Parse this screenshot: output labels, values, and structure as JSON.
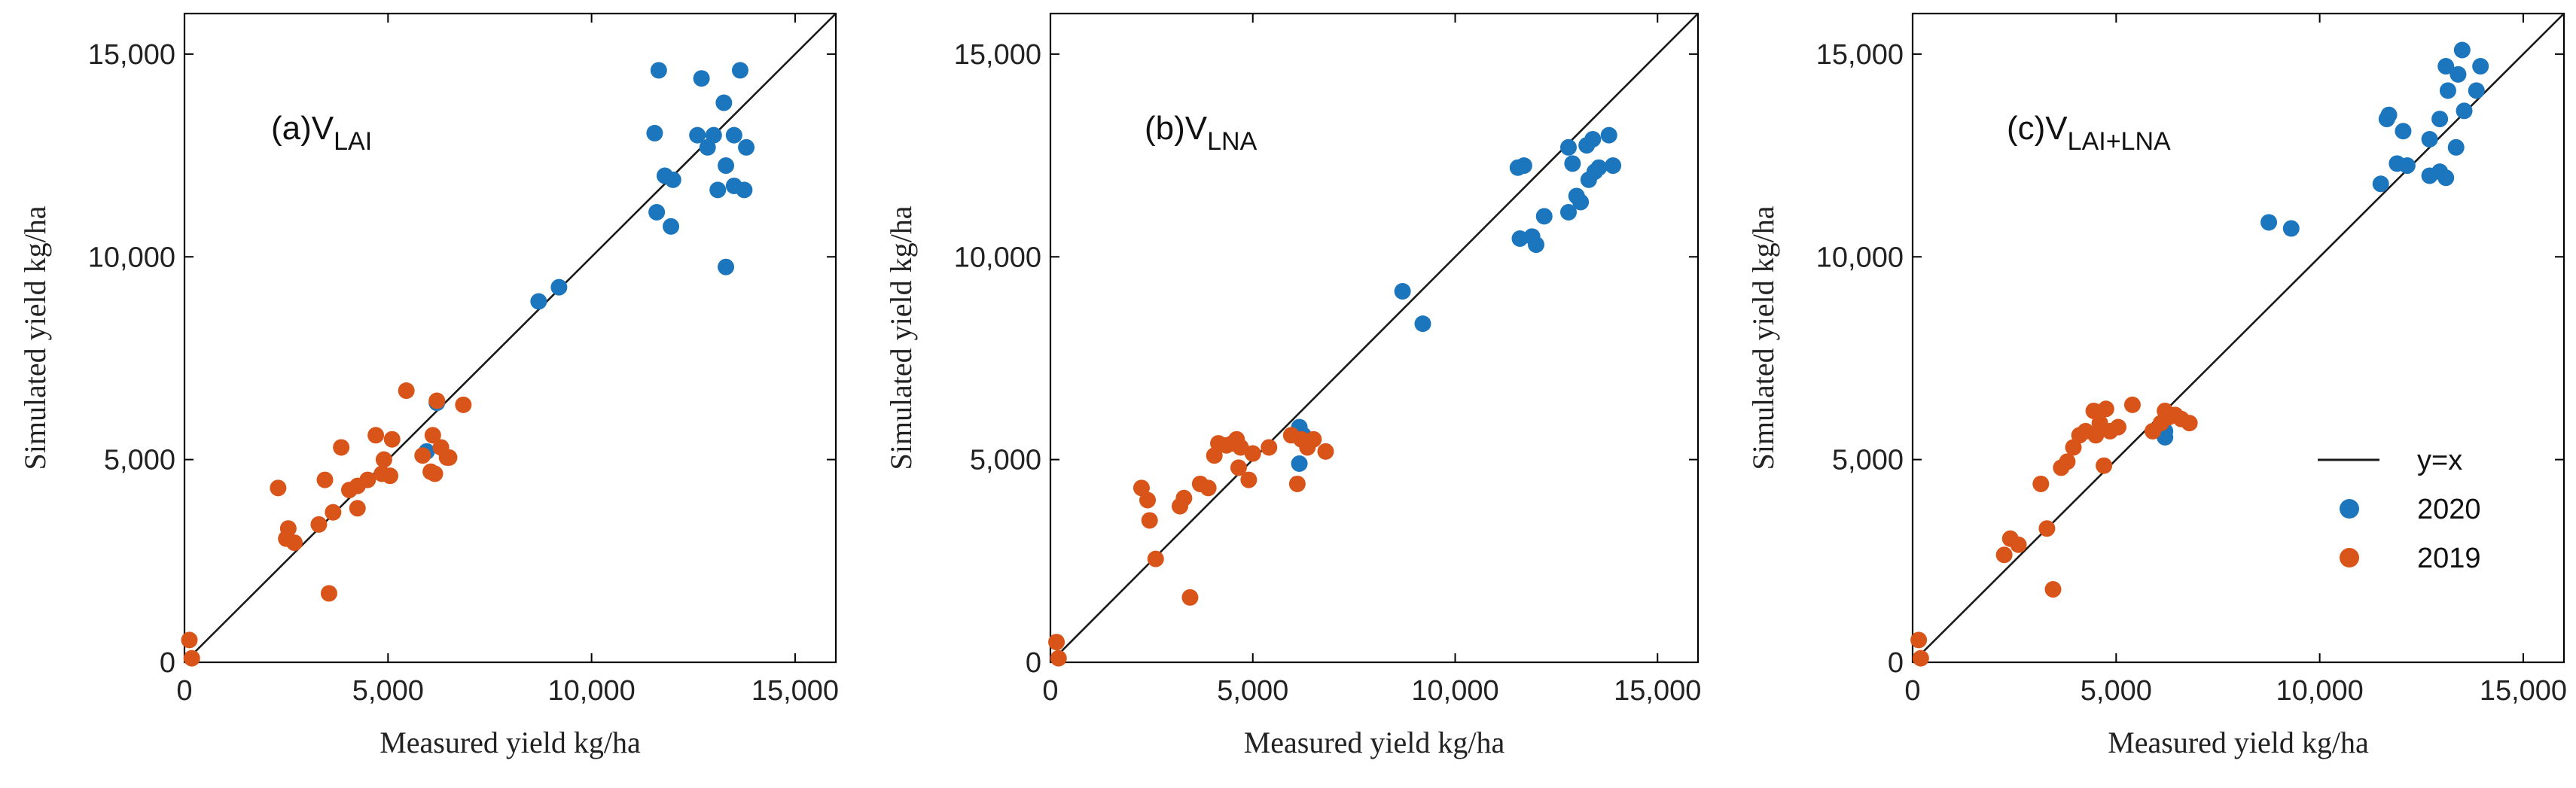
{
  "colors": {
    "s2020": "#1b76bd",
    "s2019": "#d95419",
    "line": "#1a1a1a"
  },
  "legend": {
    "line": "y=x",
    "s2020": "2020",
    "s2019": "2019"
  },
  "chart_data": [
    {
      "type": "scatter",
      "panel_label": {
        "prefix": "(a)V",
        "sub": "LAI"
      },
      "xlabel": "Measured yield kg/ha",
      "ylabel": "Simulated yield kg/ha",
      "xlim": [
        0,
        16000
      ],
      "ylim": [
        0,
        16000
      ],
      "xticks": [
        0,
        5000,
        10000,
        15000
      ],
      "yticks": [
        0,
        5000,
        10000,
        15000
      ],
      "tick_labels": [
        "0",
        "5,000",
        "10,000",
        "15,000"
      ],
      "reference_line": "y=x",
      "series": [
        {
          "name": "2020",
          "points": [
            [
              11550,
              13050
            ],
            [
              11650,
              14600
            ],
            [
              12700,
              14400
            ],
            [
              13650,
              14600
            ],
            [
              12600,
              13000
            ],
            [
              13000,
              13000
            ],
            [
              13250,
              13800
            ],
            [
              13500,
              13000
            ],
            [
              12850,
              12700
            ],
            [
              13800,
              12700
            ],
            [
              11800,
              12000
            ],
            [
              12000,
              11900
            ],
            [
              11600,
              11100
            ],
            [
              11950,
              10750
            ],
            [
              13100,
              11650
            ],
            [
              13500,
              11750
            ],
            [
              13750,
              11650
            ],
            [
              13300,
              9750
            ],
            [
              13300,
              12250
            ],
            [
              8700,
              8900
            ],
            [
              9200,
              9250
            ],
            [
              6200,
              6400
            ],
            [
              5950,
              5200
            ]
          ]
        },
        {
          "name": "2019",
          "points": [
            [
              2300,
              4300
            ],
            [
              2550,
              3300
            ],
            [
              2500,
              3050
            ],
            [
              2700,
              2950
            ],
            [
              3300,
              3400
            ],
            [
              3450,
              4500
            ],
            [
              3650,
              3700
            ],
            [
              3850,
              5300
            ],
            [
              4050,
              4250
            ],
            [
              4250,
              4350
            ],
            [
              4250,
              3800
            ],
            [
              4500,
              4500
            ],
            [
              4700,
              5600
            ],
            [
              4850,
              4650
            ],
            [
              5050,
              4600
            ],
            [
              5100,
              5500
            ],
            [
              4900,
              5000
            ],
            [
              5450,
              6700
            ],
            [
              5850,
              5100
            ],
            [
              6050,
              4700
            ],
            [
              6150,
              4650
            ],
            [
              6100,
              5600
            ],
            [
              6300,
              5300
            ],
            [
              6450,
              5050
            ],
            [
              6500,
              5050
            ],
            [
              6200,
              6450
            ],
            [
              6850,
              6350
            ],
            [
              3550,
              1700
            ],
            [
              120,
              550
            ],
            [
              180,
              100
            ]
          ]
        }
      ]
    },
    {
      "type": "scatter",
      "panel_label": {
        "prefix": "(b)V",
        "sub": "LNA"
      },
      "xlabel": "Measured yield kg/ha",
      "ylabel": "Simulated yield kg/ha",
      "xlim": [
        0,
        16000
      ],
      "ylim": [
        0,
        16000
      ],
      "xticks": [
        0,
        5000,
        10000,
        15000
      ],
      "yticks": [
        0,
        5000,
        10000,
        15000
      ],
      "tick_labels": [
        "0",
        "5,000",
        "10,000",
        "15,000"
      ],
      "reference_line": "y=x",
      "series": [
        {
          "name": "2020",
          "points": [
            [
              11550,
              12200
            ],
            [
              11700,
              12250
            ],
            [
              12800,
              12700
            ],
            [
              13250,
              12750
            ],
            [
              13400,
              12900
            ],
            [
              13800,
              13000
            ],
            [
              12900,
              12300
            ],
            [
              13450,
              12100
            ],
            [
              13550,
              12200
            ],
            [
              13900,
              12250
            ],
            [
              13300,
              11900
            ],
            [
              12200,
              11000
            ],
            [
              12800,
              11100
            ],
            [
              13000,
              11500
            ],
            [
              13100,
              11350
            ],
            [
              11600,
              10450
            ],
            [
              11900,
              10500
            ],
            [
              12000,
              10300
            ],
            [
              8700,
              9150
            ],
            [
              9200,
              8350
            ],
            [
              6150,
              5800
            ],
            [
              6250,
              5600
            ],
            [
              6150,
              4900
            ]
          ]
        },
        {
          "name": "2019",
          "points": [
            [
              2250,
              4300
            ],
            [
              2400,
              4000
            ],
            [
              2450,
              3500
            ],
            [
              2600,
              2550
            ],
            [
              3200,
              3850
            ],
            [
              3300,
              4050
            ],
            [
              3700,
              4400
            ],
            [
              3900,
              4300
            ],
            [
              4050,
              5100
            ],
            [
              4150,
              5400
            ],
            [
              4350,
              5350
            ],
            [
              4500,
              5400
            ],
            [
              4600,
              5500
            ],
            [
              4700,
              5300
            ],
            [
              4650,
              4800
            ],
            [
              4900,
              4500
            ],
            [
              5000,
              5150
            ],
            [
              5400,
              5300
            ],
            [
              5950,
              5600
            ],
            [
              6100,
              4400
            ],
            [
              6200,
              5500
            ],
            [
              6350,
              5300
            ],
            [
              6500,
              5500
            ],
            [
              6800,
              5200
            ],
            [
              3450,
              1600
            ],
            [
              150,
              500
            ],
            [
              200,
              100
            ]
          ]
        }
      ]
    },
    {
      "type": "scatter",
      "panel_label": {
        "prefix": "(c)V",
        "sub": "LAI+LNA"
      },
      "xlabel": "Measured yield kg/ha",
      "ylabel": "Simulated yield kg/ha",
      "xlim": [
        0,
        16000
      ],
      "ylim": [
        0,
        16000
      ],
      "xticks": [
        0,
        5000,
        10000,
        15000
      ],
      "yticks": [
        0,
        5000,
        10000,
        15000
      ],
      "tick_labels": [
        "0",
        "5,000",
        "10,000",
        "15,000"
      ],
      "reference_line": "y=x",
      "series": [
        {
          "name": "2020",
          "points": [
            [
              13500,
              15100
            ],
            [
              13100,
              14700
            ],
            [
              13400,
              14500
            ],
            [
              13950,
              14700
            ],
            [
              13150,
              14100
            ],
            [
              13850,
              14100
            ],
            [
              11650,
              13400
            ],
            [
              11700,
              13500
            ],
            [
              12050,
              13100
            ],
            [
              12950,
              13400
            ],
            [
              13550,
              13600
            ],
            [
              12700,
              12900
            ],
            [
              13350,
              12700
            ],
            [
              11900,
              12300
            ],
            [
              12150,
              12250
            ],
            [
              12700,
              12000
            ],
            [
              13100,
              11950
            ],
            [
              12950,
              12100
            ],
            [
              11500,
              11800
            ],
            [
              8750,
              10850
            ],
            [
              9300,
              10700
            ],
            [
              6200,
              5550
            ],
            [
              6200,
              5700
            ]
          ]
        },
        {
          "name": "2019",
          "points": [
            [
              2250,
              2650
            ],
            [
              2400,
              3050
            ],
            [
              2600,
              2900
            ],
            [
              3150,
              4400
            ],
            [
              3300,
              3300
            ],
            [
              3650,
              4800
            ],
            [
              3800,
              4950
            ],
            [
              3950,
              5300
            ],
            [
              4100,
              5600
            ],
            [
              4250,
              5700
            ],
            [
              4450,
              6200
            ],
            [
              4600,
              5900
            ],
            [
              4750,
              6250
            ],
            [
              4500,
              5600
            ],
            [
              4850,
              5700
            ],
            [
              4700,
              4850
            ],
            [
              5050,
              5800
            ],
            [
              5400,
              6350
            ],
            [
              5900,
              5700
            ],
            [
              6100,
              5900
            ],
            [
              6200,
              6200
            ],
            [
              6300,
              6050
            ],
            [
              6450,
              6100
            ],
            [
              6600,
              6000
            ],
            [
              6800,
              5900
            ],
            [
              3450,
              1800
            ],
            [
              150,
              550
            ],
            [
              200,
              100
            ]
          ]
        }
      ]
    }
  ]
}
